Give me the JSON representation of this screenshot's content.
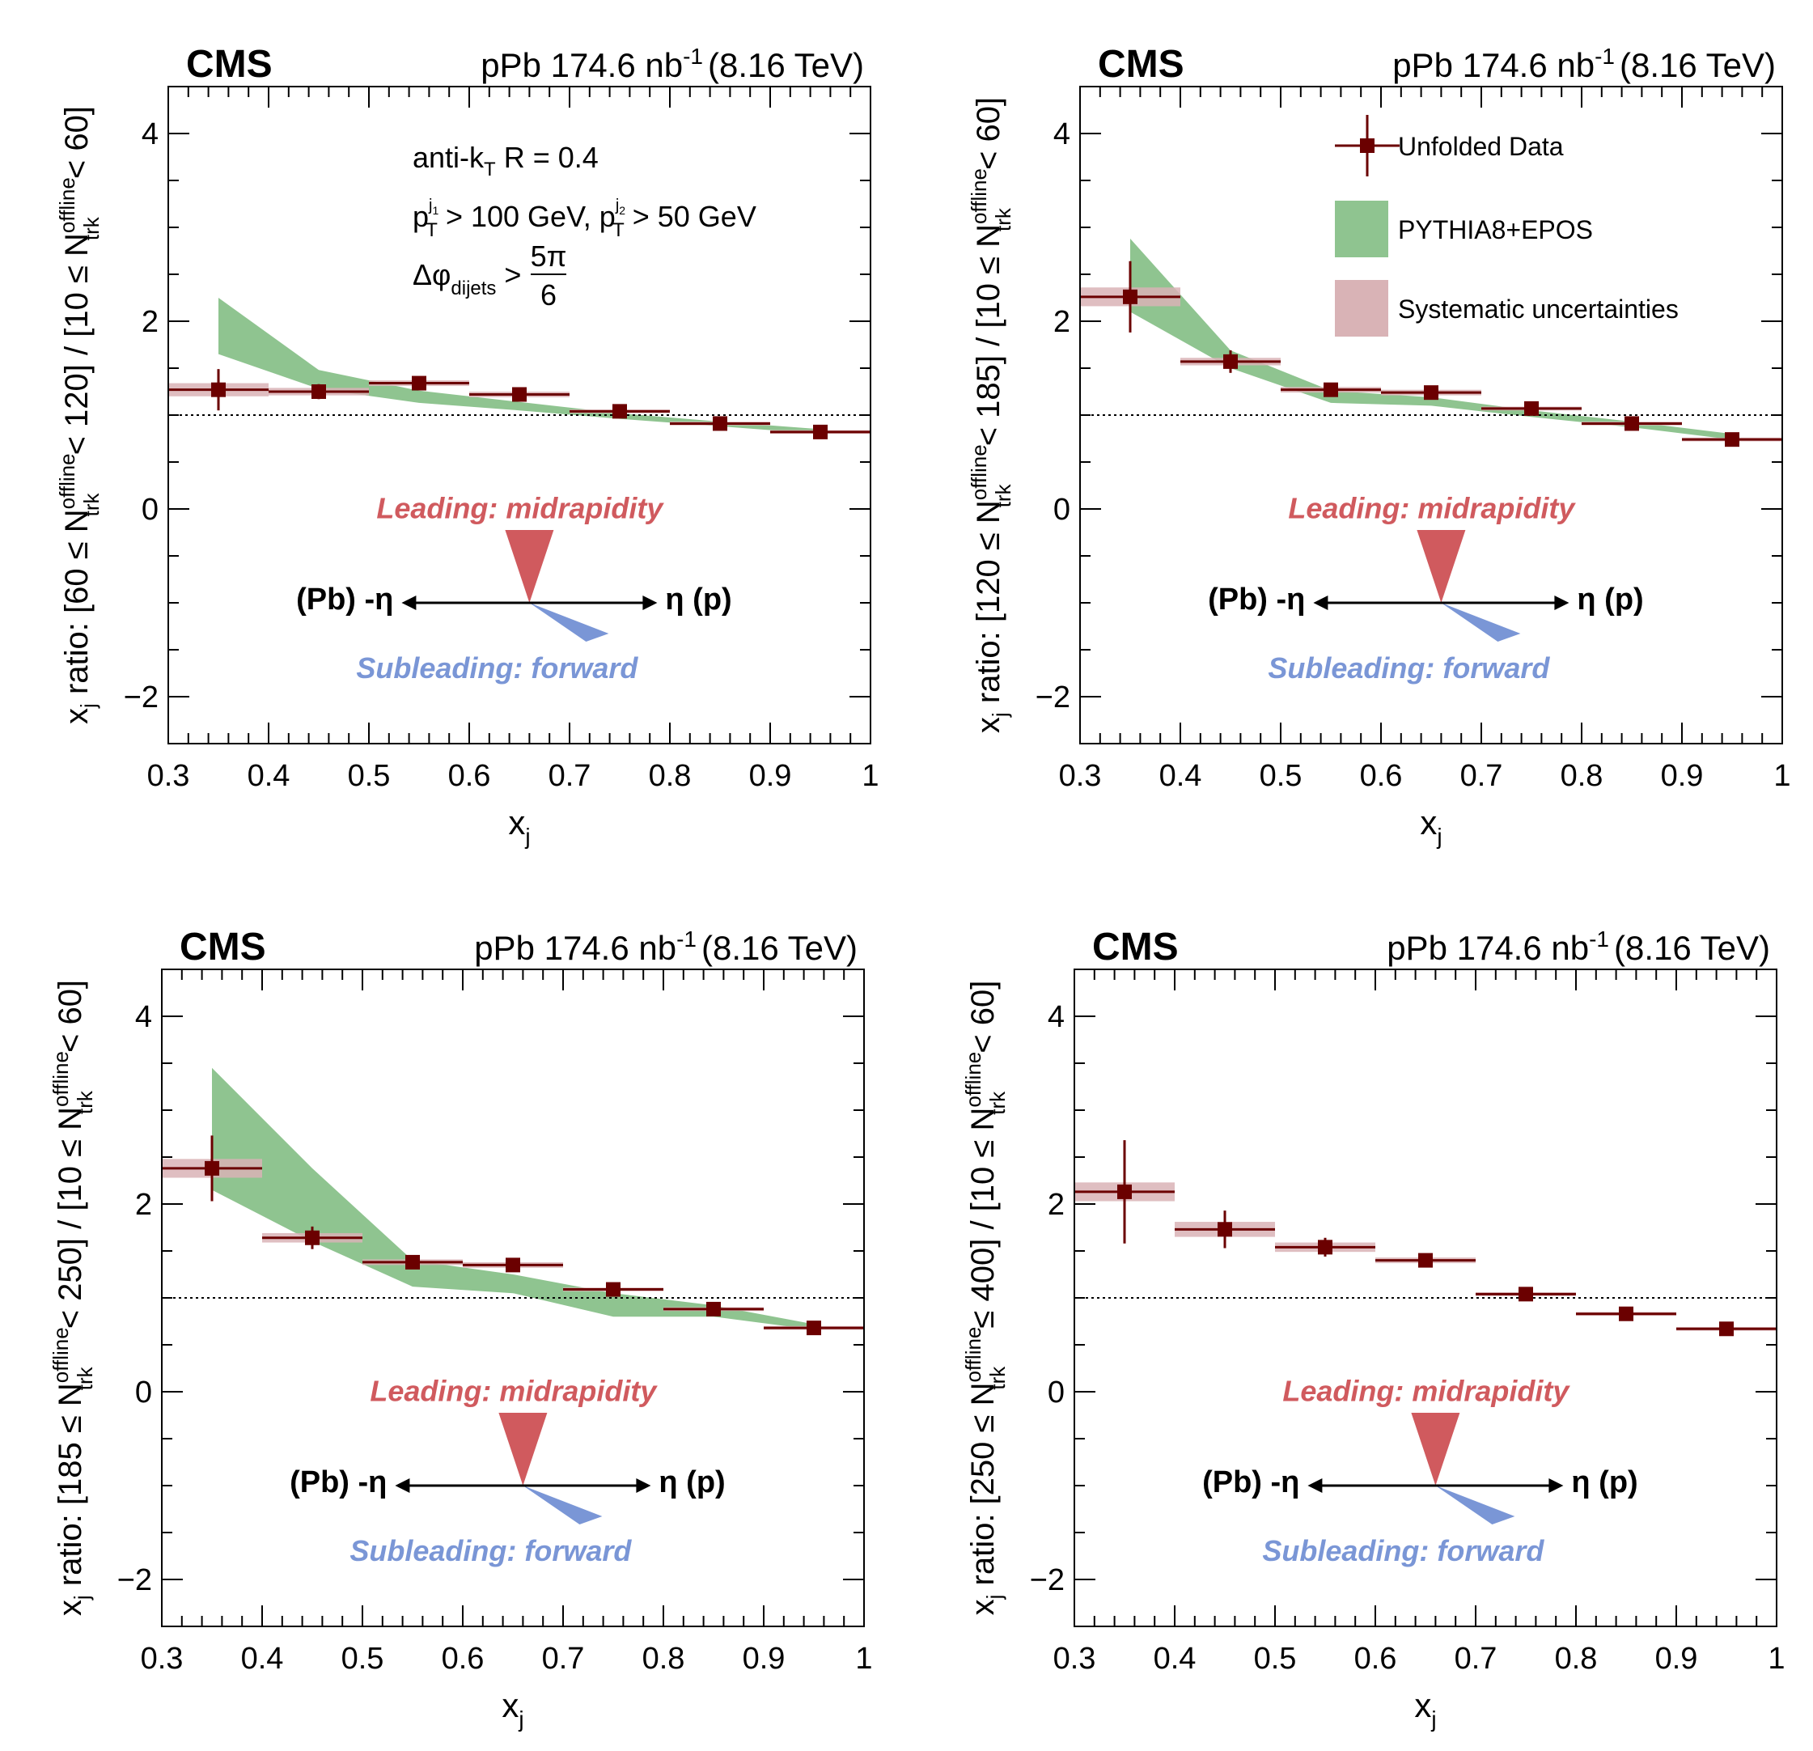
{
  "experiment": "CMS",
  "luminosity": "pPb 174.6 nb",
  "luminosity_exp": "-1",
  "energy": "(8.16 TeV)",
  "annotations": {
    "algo_main": "anti-k",
    "algo_sub": "T",
    "algo_rest": " R = 0.4",
    "pt_p1": "p",
    "pt_T1": "T",
    "pt_j1": "j",
    "pt_j1n": "1",
    "pt_rest1": " > 100 GeV, ",
    "pt_p2": "p",
    "pt_T2": "T",
    "pt_j2": "j",
    "pt_j2n": "2",
    "pt_rest2": " > 50 GeV",
    "dphi": "Δφ",
    "dphi_sub": "dijets",
    "dphi_gt": " >",
    "dphi_num": "5π",
    "dphi_den": "6"
  },
  "diagram": {
    "leading": "Leading: midrapidity",
    "subleading": "Subleading: forward",
    "left_label": "(Pb) -η",
    "right_label": "η (p)",
    "leading_color": "#d05a5e",
    "subleading_color": "#7a96d6"
  },
  "legend": {
    "data": "Unfolded Data",
    "model": "PYTHIA8+EPOS",
    "syst": "Systematic uncertainties"
  },
  "colors": {
    "data": "#6b0000",
    "model": "#8fc490",
    "syst": "#d9b3b6"
  },
  "chart_data": [
    {
      "type": "scatter",
      "ylabel_main": "x",
      "ylabel_sub": "j",
      "ylabel_pre": " ratio: [60 ≤ N",
      "ylabel_trk_sup": "offline",
      "ylabel_trk_sub": "trk",
      "ylabel_mid": " < 120] / [10 ≤ N",
      "ylabel_end": " < 60]",
      "xlabel": "x",
      "xlabel_sub": "j",
      "xlim": [
        0.3,
        1.0
      ],
      "ylim": [
        -2.5,
        4.5
      ],
      "x_ticks": [
        "0.3",
        "0.4",
        "0.5",
        "0.6",
        "0.7",
        "0.8",
        "0.9",
        "1"
      ],
      "y_ticks": [
        "−2",
        "0",
        "2",
        "4"
      ],
      "x": [
        0.35,
        0.45,
        0.55,
        0.65,
        0.75,
        0.85,
        0.95
      ],
      "y": [
        1.27,
        1.25,
        1.34,
        1.22,
        1.04,
        0.91,
        0.82
      ],
      "stat_err": [
        0.22,
        0.08,
        0.04,
        0.05,
        0.03,
        0.03,
        0.02
      ],
      "syst_err": [
        0.07,
        0.04,
        0.03,
        0.03,
        0.02,
        0.02,
        0.02
      ],
      "model_x": [
        0.35,
        0.45,
        0.55,
        0.65,
        0.75,
        0.85,
        0.95
      ],
      "model_low": [
        1.65,
        1.28,
        1.13,
        1.05,
        0.96,
        0.88,
        0.8
      ],
      "model_high": [
        2.25,
        1.48,
        1.26,
        1.14,
        1.02,
        0.93,
        0.85
      ],
      "reference_line": 1.0,
      "show_annotations": true,
      "show_legend": false
    },
    {
      "type": "scatter",
      "ylabel_main": "x",
      "ylabel_sub": "j",
      "ylabel_pre": " ratio: [120 ≤ N",
      "ylabel_trk_sup": "offline",
      "ylabel_trk_sub": "trk",
      "ylabel_mid": " < 185] / [10 ≤ N",
      "ylabel_end": " < 60]",
      "xlabel": "x",
      "xlabel_sub": "j",
      "xlim": [
        0.3,
        1.0
      ],
      "ylim": [
        -2.5,
        4.5
      ],
      "x_ticks": [
        "0.3",
        "0.4",
        "0.5",
        "0.6",
        "0.7",
        "0.8",
        "0.9",
        "1"
      ],
      "y_ticks": [
        "−2",
        "0",
        "2",
        "4"
      ],
      "x": [
        0.35,
        0.45,
        0.55,
        0.65,
        0.75,
        0.85,
        0.95
      ],
      "y": [
        2.26,
        1.57,
        1.27,
        1.24,
        1.07,
        0.91,
        0.74
      ],
      "stat_err": [
        0.38,
        0.12,
        0.05,
        0.06,
        0.05,
        0.03,
        0.03
      ],
      "syst_err": [
        0.1,
        0.04,
        0.03,
        0.03,
        0.02,
        0.02,
        0.02
      ],
      "model_x": [
        0.35,
        0.45,
        0.55,
        0.65,
        0.75,
        0.85,
        0.95
      ],
      "model_low": [
        2.1,
        1.5,
        1.13,
        1.1,
        0.98,
        0.87,
        0.74
      ],
      "model_high": [
        2.88,
        1.69,
        1.26,
        1.19,
        1.05,
        0.93,
        0.8
      ],
      "reference_line": 1.0,
      "show_annotations": false,
      "show_legend": true
    },
    {
      "type": "scatter",
      "ylabel_main": "x",
      "ylabel_sub": "j",
      "ylabel_pre": " ratio: [185 ≤ N",
      "ylabel_trk_sup": "offline",
      "ylabel_trk_sub": "trk",
      "ylabel_mid": " < 250] / [10 ≤ N",
      "ylabel_end": " < 60]",
      "xlabel": "x",
      "xlabel_sub": "j",
      "xlim": [
        0.3,
        1.0
      ],
      "ylim": [
        -2.5,
        4.5
      ],
      "x_ticks": [
        "0.3",
        "0.4",
        "0.5",
        "0.6",
        "0.7",
        "0.8",
        "0.9",
        "1"
      ],
      "y_ticks": [
        "−2",
        "0",
        "2",
        "4"
      ],
      "x": [
        0.35,
        0.45,
        0.55,
        0.65,
        0.75,
        0.85,
        0.95
      ],
      "y": [
        2.38,
        1.64,
        1.38,
        1.35,
        1.09,
        0.88,
        0.68
      ],
      "stat_err": [
        0.35,
        0.12,
        0.06,
        0.07,
        0.06,
        0.04,
        0.03
      ],
      "syst_err": [
        0.1,
        0.05,
        0.03,
        0.03,
        0.02,
        0.02,
        0.02
      ],
      "model_x": [
        0.35,
        0.45,
        0.55,
        0.65,
        0.75,
        0.85,
        0.95
      ],
      "model_low": [
        2.15,
        1.6,
        1.12,
        1.05,
        0.8,
        0.8,
        0.66
      ],
      "model_high": [
        3.45,
        2.38,
        1.4,
        1.25,
        1.05,
        0.92,
        0.72
      ],
      "reference_line": 1.0,
      "show_annotations": false,
      "show_legend": false
    },
    {
      "type": "scatter",
      "ylabel_main": "x",
      "ylabel_sub": "j",
      "ylabel_pre": " ratio: [250 ≤ N",
      "ylabel_trk_sup": "offline",
      "ylabel_trk_sub": "trk",
      "ylabel_mid": " ≤ 400] / [10 ≤ N",
      "ylabel_end": " < 60]",
      "xlabel": "x",
      "xlabel_sub": "j",
      "xlim": [
        0.3,
        1.0
      ],
      "ylim": [
        -2.5,
        4.5
      ],
      "x_ticks": [
        "0.3",
        "0.4",
        "0.5",
        "0.6",
        "0.7",
        "0.8",
        "0.9",
        "1"
      ],
      "y_ticks": [
        "−2",
        "0",
        "2",
        "4"
      ],
      "x": [
        0.35,
        0.45,
        0.55,
        0.65,
        0.75,
        0.85,
        0.95
      ],
      "y": [
        2.13,
        1.73,
        1.54,
        1.4,
        1.04,
        0.83,
        0.67
      ],
      "stat_err": [
        0.55,
        0.2,
        0.1,
        0.06,
        0.04,
        0.03,
        0.02
      ],
      "syst_err": [
        0.1,
        0.08,
        0.05,
        0.03,
        0.02,
        0.02,
        0.02
      ],
      "model_x": [],
      "model_low": [],
      "model_high": [],
      "reference_line": 1.0,
      "show_annotations": false,
      "show_legend": false
    }
  ]
}
